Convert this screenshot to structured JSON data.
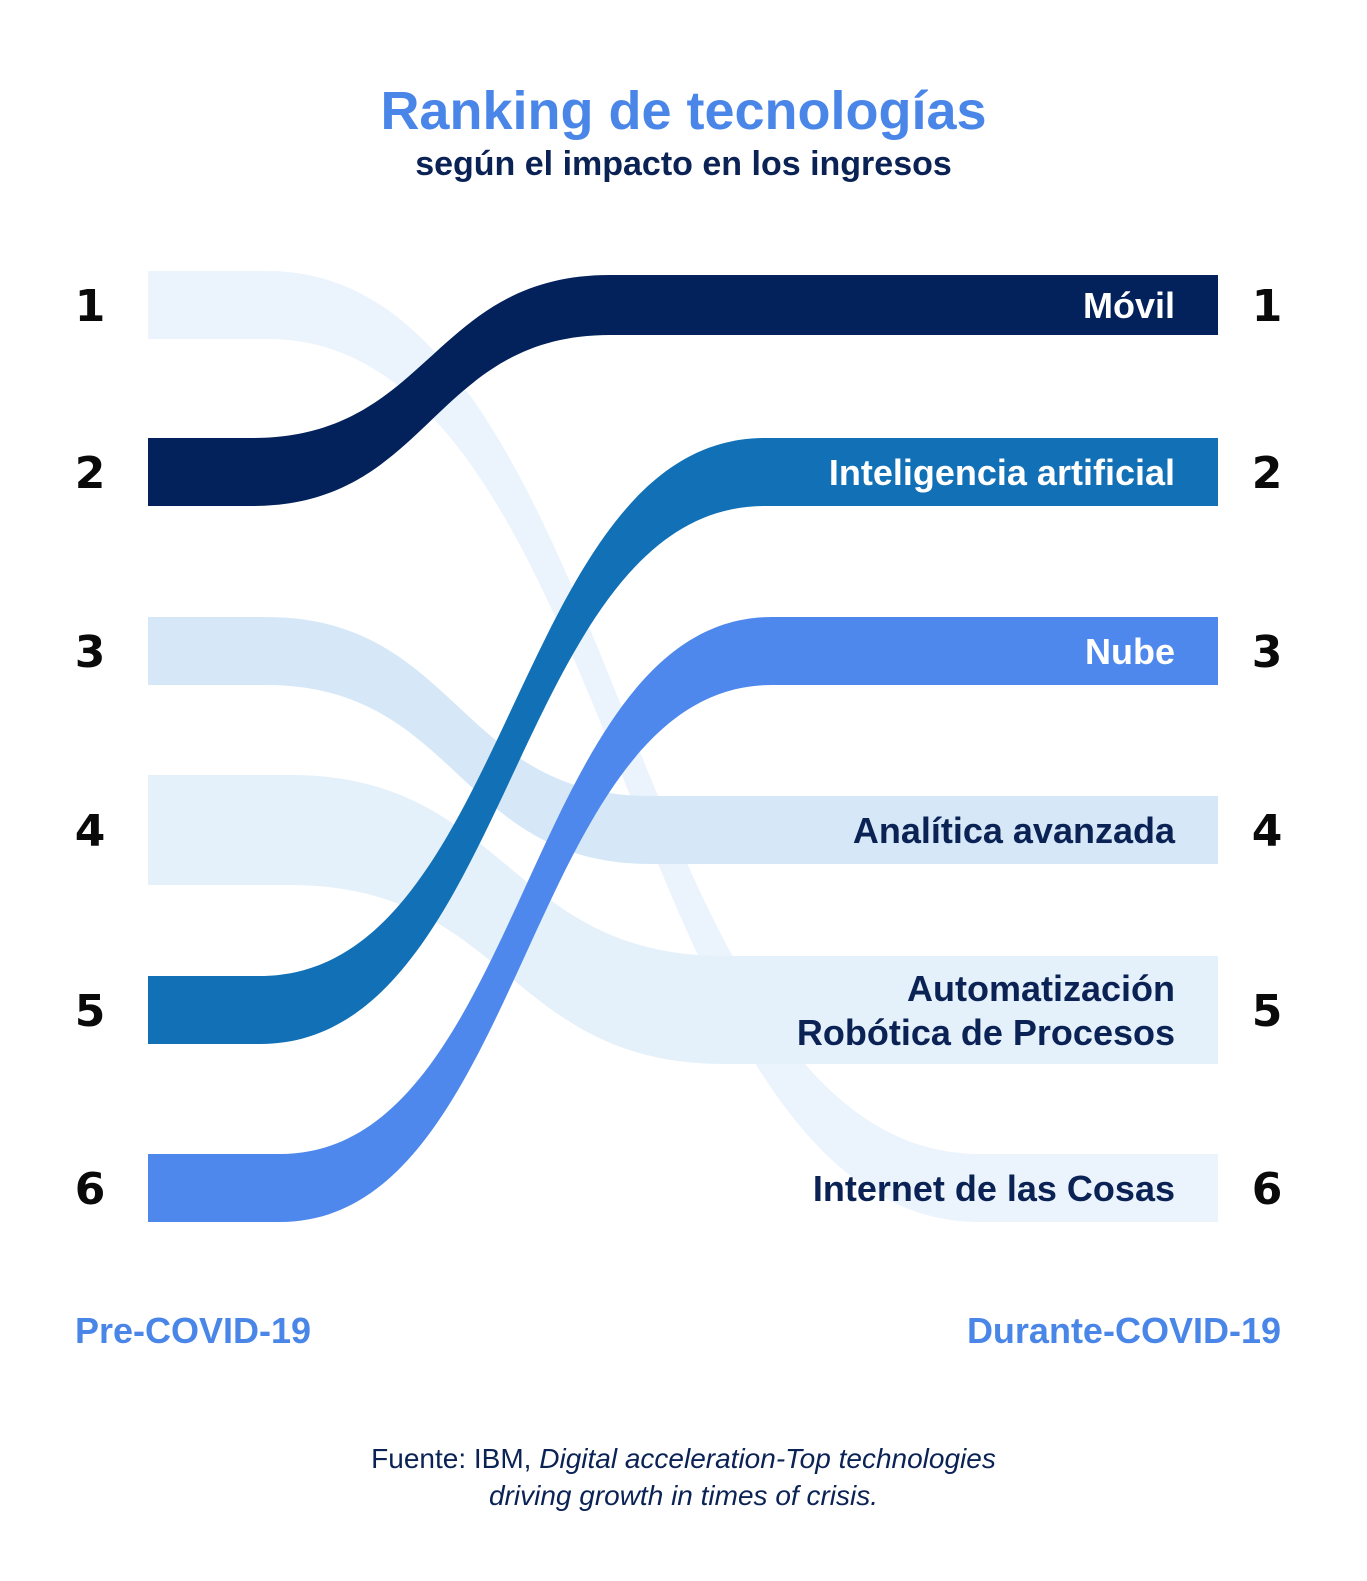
{
  "title": "Ranking de tecnologías",
  "subtitle": "según el impacto en los ingresos",
  "left_label": "Pre-COVID-19",
  "right_label": "Durante-COVID-19",
  "source": {
    "prefix": "Fuente: IBM, ",
    "italic_line1": "Digital acceleration-Top technologies",
    "italic_line2": "driving growth in times of crisis."
  },
  "colors": {
    "movil": "#03215A",
    "ia": "#1170B6",
    "nube": "#4F88EC",
    "analitica": "#D6E8F7",
    "rpa": "#E4F0FA",
    "iot": "#EBF4FC",
    "label_dark": "#0B2255",
    "accent": "#4A86E8"
  },
  "chart_data": {
    "type": "bump",
    "x": [
      "Pre-COVID-19",
      "Durante-COVID-19"
    ],
    "ranks": [
      "1",
      "2",
      "3",
      "4",
      "5",
      "6"
    ],
    "series": [
      {
        "name": "Móvil",
        "pre": 2,
        "during": 1,
        "color": "#03215A",
        "text_color": "#ffffff"
      },
      {
        "name": "Inteligencia artificial",
        "pre": 5,
        "during": 2,
        "color": "#1170B6",
        "text_color": "#ffffff"
      },
      {
        "name": "Nube",
        "pre": 6,
        "during": 3,
        "color": "#4F88EC",
        "text_color": "#ffffff"
      },
      {
        "name": "Analítica avanzada",
        "pre": 3,
        "during": 4,
        "color": "#D6E8F7",
        "text_color": "#0B2255"
      },
      {
        "name": "Automatización Robótica de Procesos",
        "lines": [
          "Automatización",
          "Robótica de Procesos"
        ],
        "pre": 4,
        "during": 5,
        "color": "#E4F0FA",
        "text_color": "#0B2255"
      },
      {
        "name": "Internet de las Cosas",
        "pre": 1,
        "during": 6,
        "color": "#EBF4FC",
        "text_color": "#0B2255"
      }
    ]
  }
}
